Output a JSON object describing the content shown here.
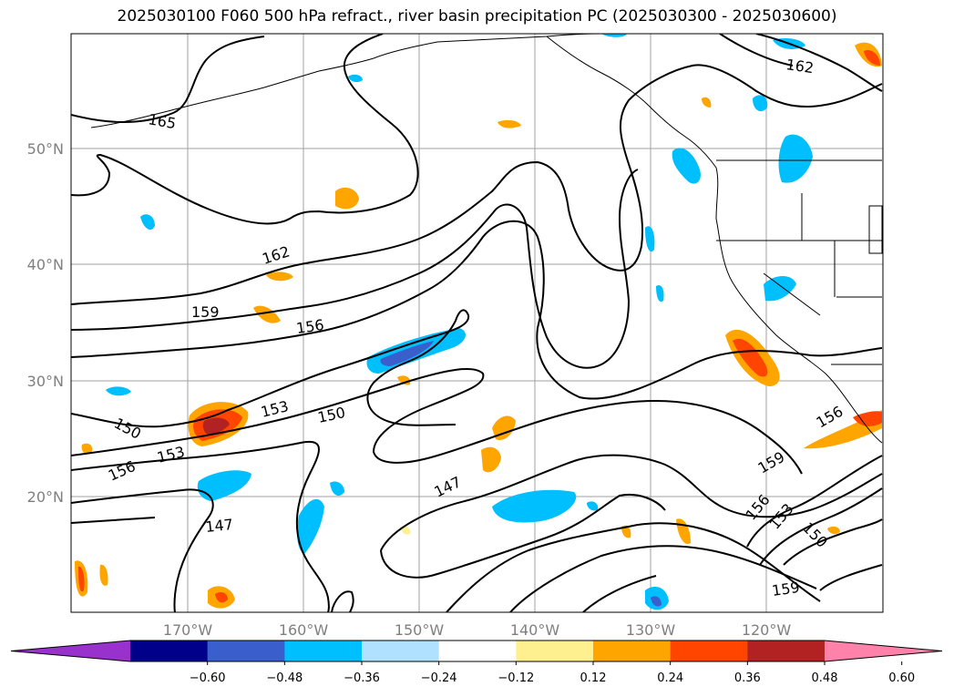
{
  "title": "2025030100 F060 500 hPa refract., river basin precipitation PC (2025030300 - 2025030600)",
  "lat_labels": [
    "50°N",
    "40°N",
    "30°N",
    "20°N"
  ],
  "lon_labels": [
    "170°W",
    "160°W",
    "150°W",
    "140°W",
    "130°W",
    "120°W"
  ],
  "contour_labels": [
    "165",
    "162",
    "162",
    "159",
    "156",
    "153",
    "150",
    "150",
    "156",
    "153",
    "147",
    "147",
    "156",
    "159",
    "156",
    "153",
    "150",
    "159"
  ],
  "colorbar": {
    "colors": [
      "#9932cc",
      "#00008b",
      "#3a5fcd",
      "#00bfff",
      "#b0e2ff",
      "#ffffff",
      "#fff08f",
      "#ffa500",
      "#ff4500",
      "#b22222",
      "#ff82ab"
    ],
    "ticks": [
      "−0.60",
      "−0.48",
      "−0.36",
      "−0.24",
      "−0.12",
      "0.12",
      "0.24",
      "0.36",
      "0.48",
      "0.60"
    ]
  }
}
